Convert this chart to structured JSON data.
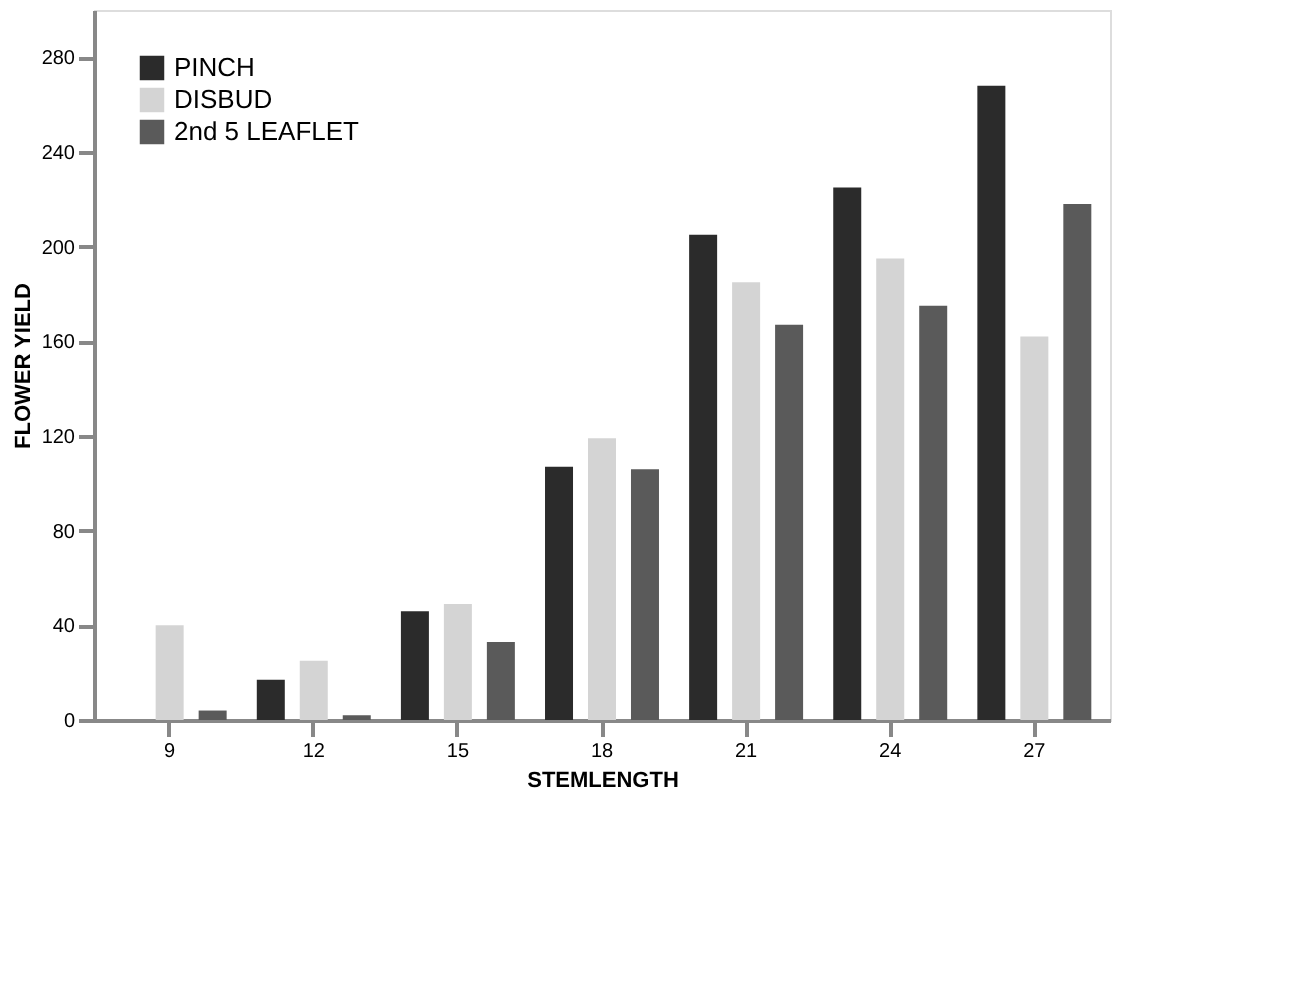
{
  "chart_data": {
    "type": "bar",
    "xlabel": "STEMLENGTH",
    "ylabel": "FLOWER YIELD",
    "categories": [
      "9",
      "12",
      "15",
      "18",
      "21",
      "24",
      "27"
    ],
    "series": [
      {
        "name": "PINCH",
        "color": "#2b2b2b",
        "values": [
          0,
          17,
          46,
          107,
          205,
          225,
          268
        ]
      },
      {
        "name": "DISBUD",
        "color": "#d4d4d4",
        "values": [
          40,
          25,
          49,
          119,
          185,
          195,
          162
        ]
      },
      {
        "name": "2nd 5 LEAFLET",
        "color": "#5a5a5a",
        "values": [
          4,
          2,
          33,
          106,
          167,
          175,
          218
        ]
      }
    ],
    "ylim": [
      0,
      300
    ],
    "yticks": [
      0,
      40,
      80,
      120,
      160,
      200,
      240,
      280
    ],
    "grid": false,
    "legend": "top left"
  }
}
